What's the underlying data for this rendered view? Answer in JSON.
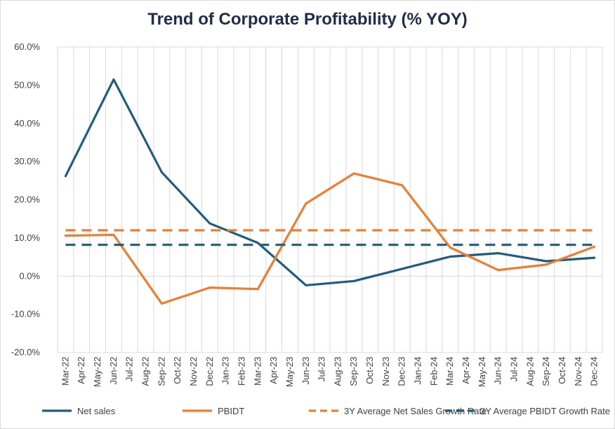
{
  "chart_data": {
    "type": "line",
    "title": "Trend of Corporate Profitability (% YOY)",
    "xlabel": "",
    "ylabel": "",
    "ylim": [
      -20,
      60
    ],
    "yticks": [
      "-20.0%",
      "-10.0%",
      "0.0%",
      "10.0%",
      "20.0%",
      "30.0%",
      "40.0%",
      "50.0%",
      "60.0%"
    ],
    "ytick_values": [
      -20,
      -10,
      0,
      10,
      20,
      30,
      40,
      50,
      60
    ],
    "grid": "vertical",
    "legend_position": "bottom",
    "categories": [
      "Mar-22",
      "Apr-22",
      "May-22",
      "Jun-22",
      "Jul-22",
      "Aug-22",
      "Sep-22",
      "Oct-22",
      "Nov-22",
      "Dec-22",
      "Jan-23",
      "Feb-23",
      "Mar-23",
      "Apr-23",
      "May-23",
      "Jun-23",
      "Jul-23",
      "Aug-23",
      "Sep-23",
      "Oct-23",
      "Nov-23",
      "Dec-23",
      "Jan-24",
      "Feb-24",
      "Mar-24",
      "Apr-24",
      "May-24",
      "Jun-24",
      "Jul-24",
      "Aug-24",
      "Sep-24",
      "Oct-24",
      "Nov-24",
      "Dec-24"
    ],
    "series": [
      {
        "name": "Net sales",
        "color": "#1f5d7f",
        "style": "solid",
        "points": [
          [
            0,
            26.2
          ],
          [
            3,
            51.5
          ],
          [
            6,
            27.2
          ],
          [
            9,
            13.8
          ],
          [
            12,
            8.7
          ],
          [
            15,
            -2.4
          ],
          [
            18,
            -1.3
          ],
          [
            21,
            1.9
          ],
          [
            24,
            5.1
          ],
          [
            27,
            6.0
          ],
          [
            30,
            3.9
          ],
          [
            33,
            4.8
          ]
        ]
      },
      {
        "name": "PBIDT",
        "color": "#ee7d31",
        "style": "solid",
        "points": [
          [
            0,
            10.6
          ],
          [
            3,
            10.8
          ],
          [
            6,
            -7.2
          ],
          [
            9,
            -3.0
          ],
          [
            12,
            -3.4
          ],
          [
            15,
            19.0
          ],
          [
            18,
            26.9
          ],
          [
            21,
            23.8
          ],
          [
            24,
            7.5
          ],
          [
            27,
            1.6
          ],
          [
            30,
            3.0
          ],
          [
            33,
            7.7
          ]
        ]
      },
      {
        "name": "3Y Average Net Sales Growth Rate",
        "color": "#ee7d31",
        "style": "dashed",
        "points": [
          [
            0,
            12.0
          ],
          [
            33,
            12.0
          ]
        ]
      },
      {
        "name": "3Y Average PBIDT Growth Rate",
        "color": "#1f5d7f",
        "style": "dashed",
        "points": [
          [
            0,
            8.2
          ],
          [
            33,
            8.2
          ]
        ]
      }
    ]
  }
}
